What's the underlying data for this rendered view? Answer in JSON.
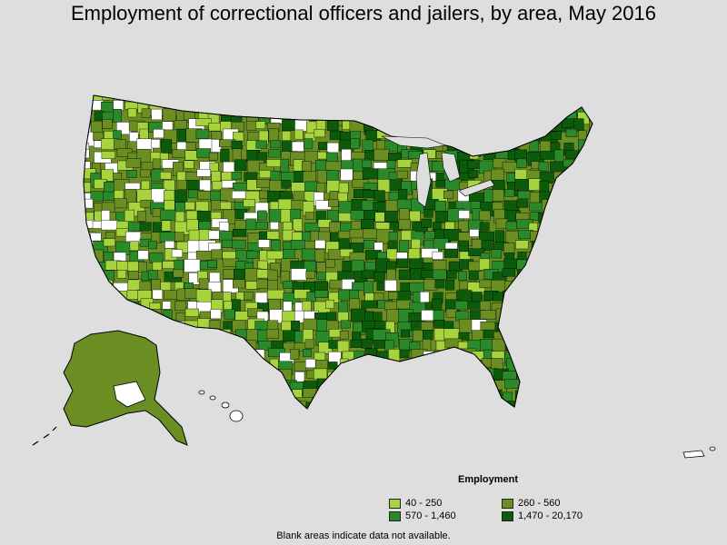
{
  "title": "Employment of correctional officers and jailers, by area, May 2016",
  "legend": {
    "title": "Employment",
    "items": [
      {
        "label": "40 - 250",
        "color": "#a7d43c"
      },
      {
        "label": "260 - 560",
        "color": "#6b8e23"
      },
      {
        "label": "570 - 1,460",
        "color": "#2a8a2a"
      },
      {
        "label": "1,470 - 20,170",
        "color": "#0b5b0b"
      }
    ]
  },
  "footnote": "Blank areas indicate data not available.",
  "colors": {
    "background": "#dedede",
    "no_data": "#ffffff",
    "border": "#000000"
  }
}
